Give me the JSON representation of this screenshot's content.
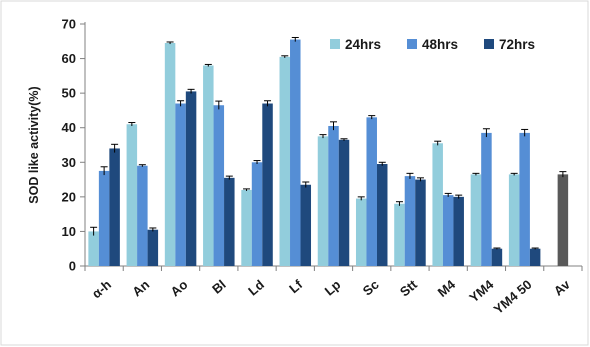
{
  "chart_data": {
    "type": "bar",
    "title": "",
    "xlabel": "",
    "ylabel": "SOD like activity(%)",
    "ylim": [
      0,
      70
    ],
    "yticks": [
      0,
      10,
      20,
      30,
      40,
      50,
      60,
      70
    ],
    "grid": false,
    "legend_position": "top-right",
    "categories": [
      "α-h",
      "An",
      "Ao",
      "Bl",
      "Ld",
      "Lf",
      "Lp",
      "Sc",
      "Stt",
      "M4",
      "YM4",
      "YM4 50",
      "Av"
    ],
    "series": [
      {
        "name": "24hrs",
        "color": "#92cddc",
        "values": [
          10,
          41,
          64.5,
          58,
          22,
          60.5,
          37.5,
          19.5,
          18,
          35.5,
          26.5,
          26.5,
          null
        ],
        "errors": [
          1.2,
          0.5,
          0.3,
          0.3,
          0.3,
          0.3,
          0.5,
          0.5,
          0.6,
          0.6,
          0.3,
          0.3,
          null
        ]
      },
      {
        "name": "48hrs",
        "color": "#558ed5",
        "values": [
          27.5,
          29,
          47,
          46.5,
          30,
          65.5,
          40.5,
          43,
          26,
          20.5,
          38.5,
          38.5,
          null
        ],
        "errors": [
          1.2,
          0.3,
          0.8,
          1.2,
          0.5,
          0.6,
          1.2,
          0.5,
          0.8,
          0.5,
          1.2,
          1.0,
          null
        ]
      },
      {
        "name": "72hrs",
        "color": "#1f497d",
        "values": [
          34,
          10.5,
          50.5,
          25.5,
          47,
          23.5,
          36.5,
          29.5,
          25,
          20,
          5,
          5,
          null
        ],
        "errors": [
          1.2,
          0.5,
          0.6,
          0.5,
          0.8,
          0.8,
          0.3,
          0.5,
          0.5,
          0.5,
          0.2,
          0.2,
          null
        ]
      }
    ],
    "reference": {
      "category": "Av",
      "value": 26.5,
      "error": 0.8,
      "color": "#595959"
    }
  }
}
